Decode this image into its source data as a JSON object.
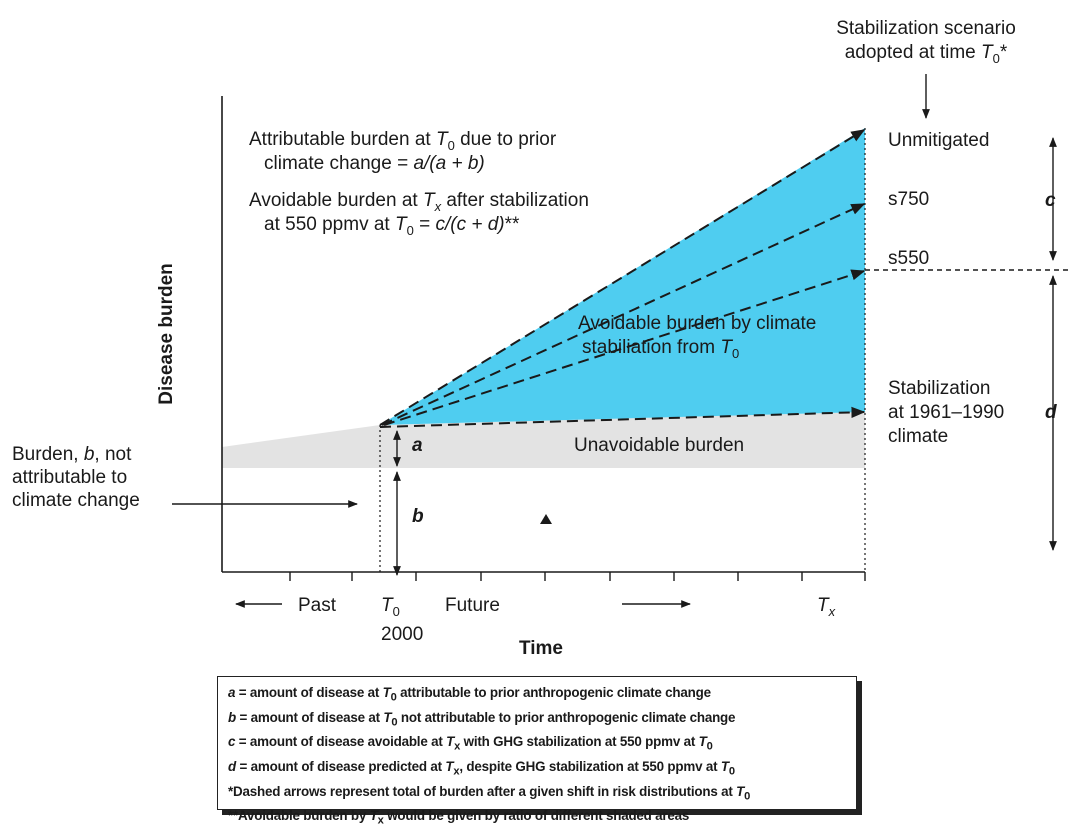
{
  "colors": {
    "avoidable_fill": "#4fcdf0",
    "unavoidable_fill": "#e3e3e3",
    "ink": "#1a1a1a"
  },
  "header": {
    "scenario_line1": "Stabilization scenario",
    "scenario_line2_prefix": "adopted at time ",
    "scenario_line2_var": "T",
    "scenario_line2_sub": "0",
    "scenario_line2_suffix": "*"
  },
  "attributable": {
    "line1_prefix": "Attributable burden at ",
    "var": "T",
    "sub": "0",
    "line1_suffix": " due to prior",
    "line2_prefix": "climate change = ",
    "formula": "a/(a + b)"
  },
  "avoidable_text": {
    "line1_prefix": "Avoidable burden at ",
    "var": "T",
    "sub": "x",
    "line1_suffix": " after stabilization",
    "line2_prefix": "at 550 ppmv at ",
    "line2_var": "T",
    "line2_sub": "0",
    "line2_mid": " = ",
    "formula": "c/(c + d)",
    "line2_suffix": "**"
  },
  "y_axis_label": "Disease burden",
  "x_axis": {
    "title": "Time",
    "past": "Past",
    "future": "Future",
    "t0_var": "T",
    "t0_sub": "0",
    "year": "2000",
    "tx_var": "T",
    "tx_sub": "x"
  },
  "scenarios": {
    "unmitigated": "Unmitigated",
    "s750": "s750",
    "s550": "s550",
    "stab_line1": "Stabilization",
    "stab_line2": "at 1961–1990",
    "stab_line3": "climate"
  },
  "region_labels": {
    "avoidable_line1": "Avoidable burden by climate",
    "avoidable_line2": "stabiliation from ",
    "avoidable_var": "T",
    "avoidable_sub": "0",
    "unavoidable": "Unavoidable burden"
  },
  "burden_b": {
    "line1_prefix": "Burden, ",
    "var": "b",
    "line1_suffix": ", not",
    "line2": "attributable to",
    "line3": "climate change"
  },
  "markers": {
    "a": "a",
    "b": "b",
    "c": "c",
    "d": "d"
  },
  "legend": {
    "a_var": "a",
    "a_text": " = amount of disease at ",
    "a_t": "T",
    "a_sub": "0",
    "a_rest": " attributable to prior anthropogenic climate change",
    "b_var": "b",
    "b_text": " = amount of disease at ",
    "b_t": "T",
    "b_sub": "0",
    "b_rest": " not attributable to prior anthropogenic climate change",
    "c_var": "c",
    "c_text": " = amount of disease avoidable at ",
    "c_t": "T",
    "c_sub": "x",
    "c_mid": " with GHG stabilization at 550 ppmv at ",
    "c_t2": "T",
    "c_sub2": "0",
    "d_var": "d",
    "d_text": " = amount of disease predicted at ",
    "d_t": "T",
    "d_sub": "x",
    "d_mid": ", despite GHG stabilization at 550 ppmv at ",
    "d_t2": "T",
    "d_sub2": "0",
    "note1": "*Dashed arrows represent total of burden after a given shift in risk distributions at ",
    "note1_t": "T",
    "note1_sub": "0",
    "note2_prefix": "**Avoidable burden by ",
    "note2_t": "T",
    "note2_sub": "x",
    "note2_suffix": " would be given by ratio of different shaded areas"
  }
}
